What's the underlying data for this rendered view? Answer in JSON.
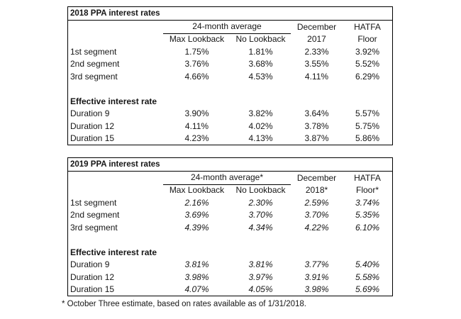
{
  "colors": {
    "background": "#ffffff",
    "border": "#000000",
    "text": "#161616"
  },
  "footnote": "* October Three estimate, based on rates available as of 1/31/2018.",
  "tables": [
    {
      "title": "2018 PPA interest rates",
      "group_header": "24-month average",
      "sub1": "Max Lookback",
      "sub2": "No Lookback",
      "dec_line1": "December",
      "dec_line2": "2017",
      "hatfa_line1": "HATFA",
      "hatfa_line2": "Floor",
      "section_label": "Effective interest rate",
      "rows_segments": [
        {
          "label": "1st segment",
          "v1": "1.75%",
          "v2": "1.81%",
          "v3": "2.33%",
          "v4": "3.92%"
        },
        {
          "label": "2nd segment",
          "v1": "3.76%",
          "v2": "3.68%",
          "v3": "3.55%",
          "v4": "5.52%"
        },
        {
          "label": "3rd segment",
          "v1": "4.66%",
          "v2": "4.53%",
          "v3": "4.11%",
          "v4": "6.29%"
        }
      ],
      "rows_durations": [
        {
          "label": "Duration 9",
          "v1": "3.90%",
          "v2": "3.82%",
          "v3": "3.64%",
          "v4": "5.57%"
        },
        {
          "label": "Duration 12",
          "v1": "4.11%",
          "v2": "4.02%",
          "v3": "3.78%",
          "v4": "5.75%"
        },
        {
          "label": "Duration 15",
          "v1": "4.23%",
          "v2": "4.13%",
          "v3": "3.87%",
          "v4": "5.86%"
        }
      ]
    },
    {
      "title": "2019 PPA interest rates",
      "group_header": "24-month average*",
      "sub1": "Max Lookback",
      "sub2": "No Lookback",
      "dec_line1": "December",
      "dec_line2": "2018*",
      "hatfa_line1": "HATFA",
      "hatfa_line2": "Floor*",
      "section_label": "Effective interest rate",
      "rows_segments": [
        {
          "label": "1st segment",
          "v1": "2.16%",
          "v2": "2.30%",
          "v3": "2.59%",
          "v4": "3.74%"
        },
        {
          "label": "2nd segment",
          "v1": "3.69%",
          "v2": "3.70%",
          "v3": "3.70%",
          "v4": "5.35%"
        },
        {
          "label": "3rd segment",
          "v1": "4.39%",
          "v2": "4.34%",
          "v3": "4.22%",
          "v4": "6.10%"
        }
      ],
      "rows_durations": [
        {
          "label": "Duration 9",
          "v1": "3.81%",
          "v2": "3.81%",
          "v3": "3.77%",
          "v4": "5.40%"
        },
        {
          "label": "Duration 12",
          "v1": "3.98%",
          "v2": "3.97%",
          "v3": "3.91%",
          "v4": "5.58%"
        },
        {
          "label": "Duration 15",
          "v1": "4.07%",
          "v2": "4.05%",
          "v3": "3.98%",
          "v4": "5.69%"
        }
      ]
    }
  ]
}
